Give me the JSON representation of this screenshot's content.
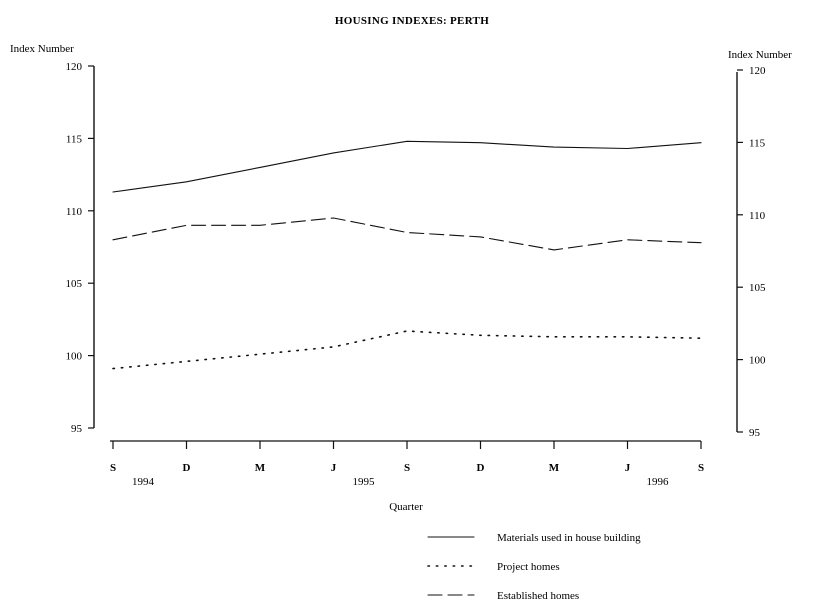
{
  "chart_data": {
    "type": "line",
    "title": "HOUSING INDEXES:  PERTH",
    "xlabel": "Quarter",
    "ylabel_left": "Index Number",
    "ylabel_right": "Index Number",
    "ylim": [
      95,
      120
    ],
    "yticks": [
      "95",
      "100",
      "105",
      "110",
      "115",
      "120"
    ],
    "categories": [
      "S",
      "D",
      "M",
      "J",
      "S",
      "D",
      "M",
      "J",
      "S"
    ],
    "years": [
      {
        "label": "1994",
        "at": 0
      },
      {
        "label": "1995",
        "at": 3
      },
      {
        "label": "1996",
        "at": 7
      }
    ],
    "series": [
      {
        "name": "Materials used in house building",
        "style": "solid",
        "values": [
          111.3,
          112.0,
          113.0,
          114.0,
          114.8,
          114.7,
          114.4,
          114.3,
          114.7
        ]
      },
      {
        "name": "Project homes",
        "style": "dotted",
        "values": [
          99.1,
          99.6,
          100.1,
          100.6,
          101.7,
          101.4,
          101.3,
          101.3,
          101.2
        ]
      },
      {
        "name": "Established homes",
        "style": "dashed",
        "values": [
          108.0,
          109.0,
          109.0,
          109.5,
          108.5,
          108.2,
          107.3,
          108.0,
          107.8
        ]
      }
    ],
    "grid": false,
    "legend_position": "bottom-right"
  }
}
